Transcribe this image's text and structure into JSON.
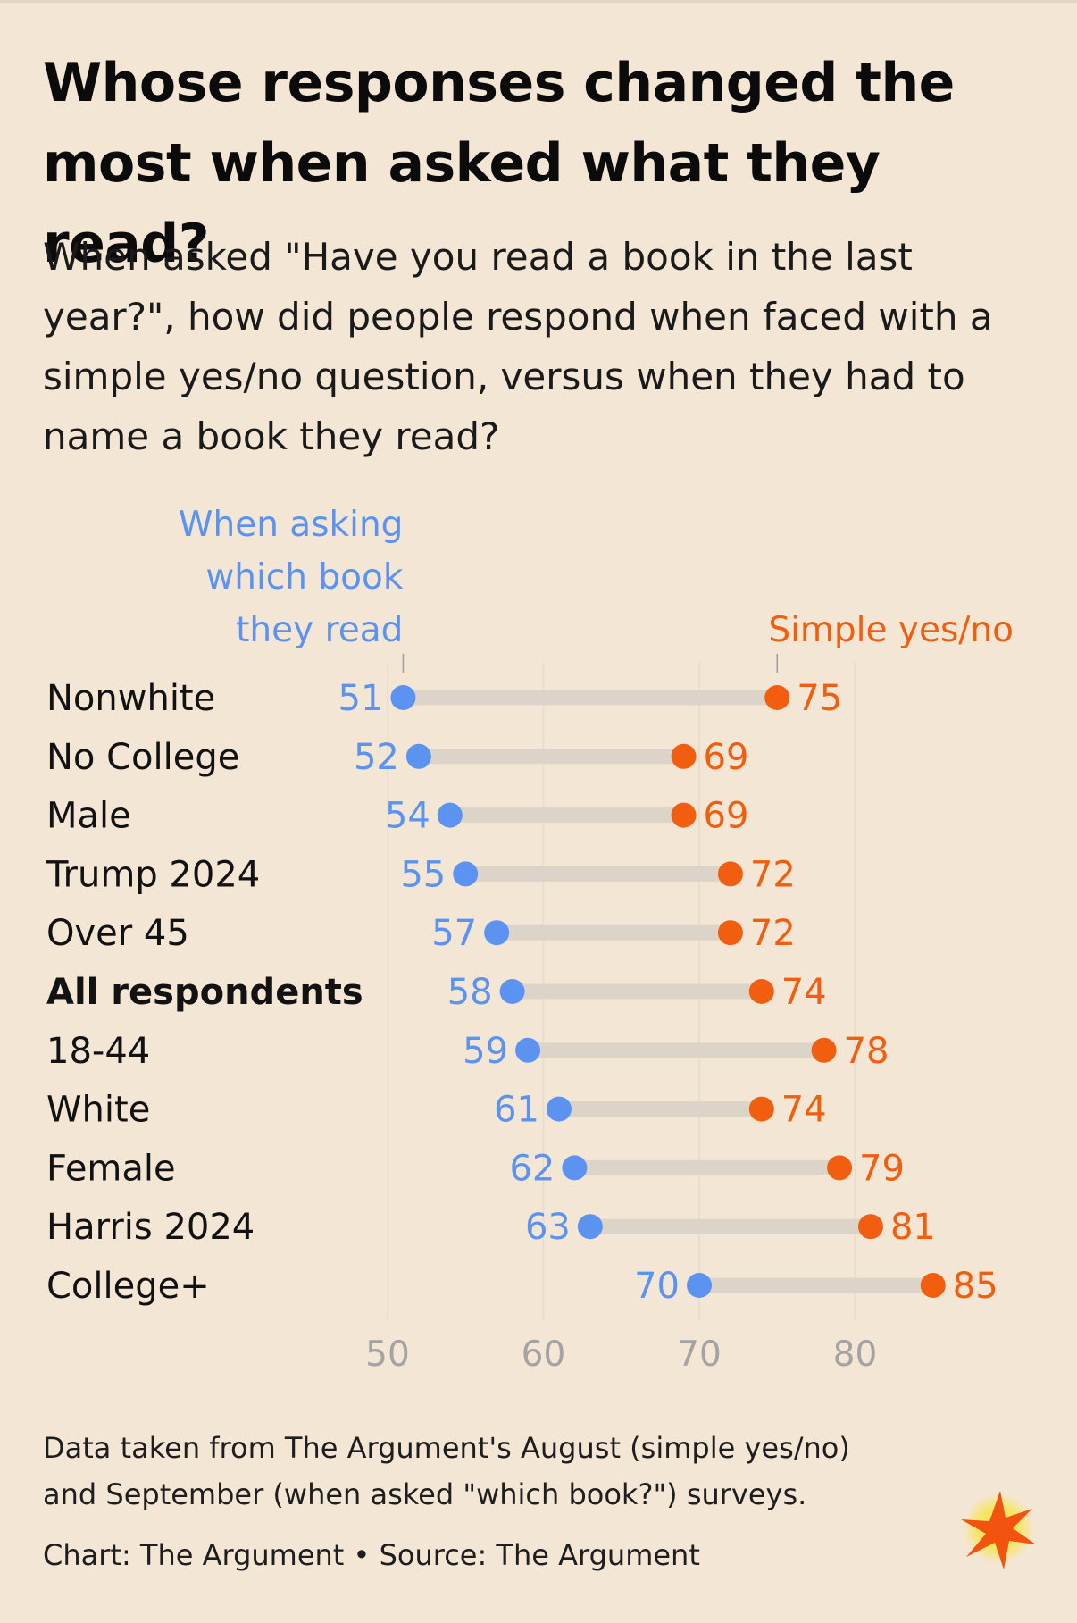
{
  "title": "Whose responses changed the most when asked what they read?",
  "subtitle": "When asked \"Have you read a book in the last year?\", how did people respond when faced with a simple yes/no question, versus when they had to name a book they read?",
  "footnote_line1": "Data taken from The Argument's August (simple yes/no)",
  "footnote_line2": "and September (when asked \"which book?\") surveys.",
  "credit": "Chart: The Argument • Source: The Argument",
  "colors": {
    "background": "#f3e6d5",
    "which_book": "#5c93f0",
    "yes_no": "#f25e0f",
    "connector": "#dcd4c9",
    "gridline": "#e4dccf",
    "axis_text": "#a3a3a3"
  },
  "chart_data": {
    "type": "dumbbell",
    "series": [
      {
        "name": "When asking which book they read",
        "label_lines": [
          "When asking",
          "which book",
          "they read"
        ],
        "color": "#5c93f0"
      },
      {
        "name": "Simple yes/no",
        "label_lines": [
          "Simple yes/no"
        ],
        "color": "#f25e0f"
      }
    ],
    "categories": [
      "Nonwhite",
      "No College",
      "Male",
      "Trump 2024",
      "Over 45",
      "All respondents",
      "18-44",
      "White",
      "Female",
      "Harris 2024",
      "College+"
    ],
    "bold_categories": [
      "All respondents"
    ],
    "which_book": [
      51,
      52,
      54,
      55,
      57,
      58,
      59,
      61,
      62,
      63,
      70
    ],
    "yes_no": [
      75,
      69,
      69,
      72,
      72,
      74,
      78,
      74,
      79,
      81,
      85
    ],
    "x_ticks": [
      50,
      60,
      70,
      80
    ],
    "xlim": [
      50,
      85
    ],
    "grid": true
  }
}
